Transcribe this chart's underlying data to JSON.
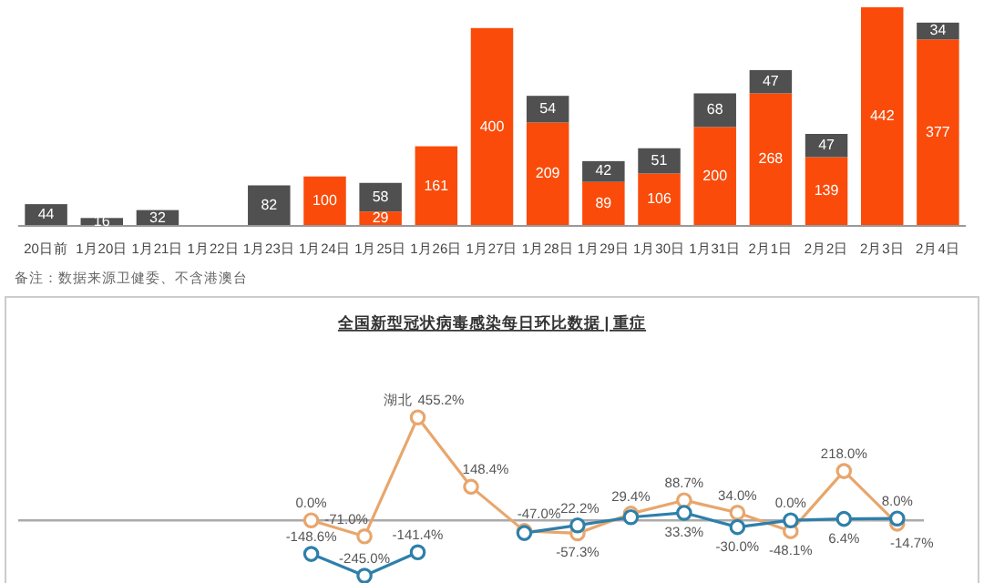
{
  "chart_data": [
    {
      "type": "bar",
      "stacked": true,
      "categories": [
        "20日前",
        "1月20日",
        "1月21日",
        "1月22日",
        "1月23日",
        "1月24日",
        "1月25日",
        "1月26日",
        "1月27日",
        "1月28日",
        "1月29日",
        "1月30日",
        "1月31日",
        "2月1日",
        "2月2日",
        "2月3日",
        "2月4日"
      ],
      "series": [
        {
          "color": "#fa4b0a",
          "values": [
            0,
            0,
            0,
            null,
            0,
            100,
            29,
            161,
            400,
            209,
            89,
            106,
            200,
            268,
            139,
            442,
            377
          ],
          "value_labels": [
            null,
            null,
            null,
            null,
            null,
            "100",
            "29",
            "161",
            "400",
            "209",
            "89",
            "106",
            "200",
            "268",
            "139",
            "442",
            "377"
          ]
        },
        {
          "color": "#505050",
          "values": [
            44,
            16,
            32,
            null,
            82,
            null,
            58,
            null,
            null,
            54,
            42,
            51,
            68,
            47,
            47,
            null,
            34
          ],
          "value_labels": [
            "44",
            "16",
            "32",
            null,
            "82",
            null,
            "58",
            null,
            null,
            "54",
            "42",
            "51",
            "68",
            "47",
            "47",
            null,
            "34"
          ]
        }
      ],
      "annotations": [
        "备注：数据来源卫健委、不含港澳台"
      ]
    },
    {
      "type": "line",
      "title": "全国新型冠状病毒感染每日环比数据 | 重症",
      "marker": "circle",
      "categories": [
        null,
        null,
        null,
        null,
        null,
        null,
        null,
        null,
        null,
        null,
        null,
        null,
        null,
        null,
        null,
        null,
        null
      ],
      "series": [
        {
          "name": "湖北",
          "color": "#e8a66c",
          "values": [
            null,
            null,
            null,
            null,
            null,
            0.0,
            -71.0,
            455.2,
            148.4,
            -47.0,
            -57.3,
            29.4,
            88.7,
            34.0,
            -48.1,
            218.0,
            -14.7
          ],
          "value_labels": [
            null,
            null,
            null,
            null,
            null,
            "0.0%",
            "-71.0%",
            "455.2%",
            "148.4%",
            "-47.0%",
            "-57.3%",
            "29.4%",
            "88.7%",
            "34.0%",
            "-48.1%",
            "218.0%",
            "-14.7%"
          ]
        },
        {
          "color": "#2e7faa",
          "values": [
            null,
            null,
            null,
            null,
            null,
            -148.6,
            -245.0,
            -141.4,
            null,
            -56,
            -22.2,
            14,
            33.3,
            -30.0,
            0.0,
            6.4,
            8.0
          ],
          "value_labels": [
            null,
            null,
            null,
            null,
            null,
            "-148.6%",
            "-245.0%",
            "-141.4%",
            null,
            null,
            "-22.2%",
            null,
            "33.3%",
            "-30.0%",
            "0.0%",
            "6.4%",
            "8.0%"
          ]
        }
      ]
    }
  ]
}
